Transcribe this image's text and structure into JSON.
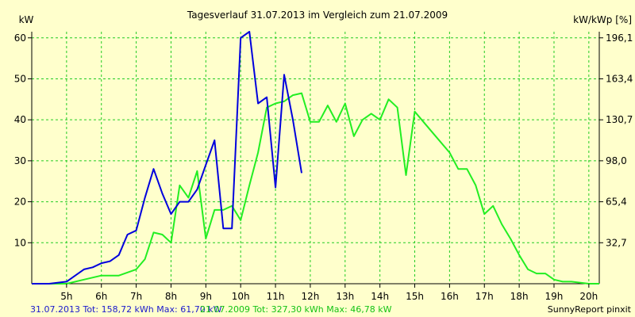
{
  "chart_data": {
    "type": "line",
    "title": "Tagesverlauf 31.07.2013 im Vergleich zum 21.07.2009",
    "ylabel_left": "kW",
    "ylabel_right": "kW/kWp [%]",
    "x_ticks": [
      "5h",
      "6h",
      "7h",
      "8h",
      "9h",
      "10h",
      "11h",
      "12h",
      "13h",
      "14h",
      "15h",
      "16h",
      "17h",
      "18h",
      "19h",
      "20h"
    ],
    "x_tick_values": [
      5,
      6,
      7,
      8,
      9,
      10,
      11,
      12,
      13,
      14,
      15,
      16,
      17,
      18,
      19,
      20
    ],
    "xlim": [
      4.0,
      20.3
    ],
    "y_ticks": [
      10,
      20,
      30,
      40,
      50,
      60
    ],
    "ylim": [
      0,
      61.5
    ],
    "y2_ticks": [
      "32,7",
      "65,4",
      "98,0",
      "130,7",
      "163,4",
      "196,1"
    ],
    "grid": true,
    "colors": {
      "series1": "#0000dd",
      "series2": "#22ee22",
      "grid": "#22cc22",
      "background": "#ffffcc"
    },
    "series": [
      {
        "name": "31.07.2013",
        "points": [
          [
            4.0,
            0
          ],
          [
            4.5,
            0
          ],
          [
            5.0,
            0.5
          ],
          [
            5.25,
            2
          ],
          [
            5.5,
            3.5
          ],
          [
            5.75,
            4
          ],
          [
            6.0,
            5
          ],
          [
            6.25,
            5.5
          ],
          [
            6.5,
            7
          ],
          [
            6.75,
            12
          ],
          [
            7.0,
            13
          ],
          [
            7.25,
            21
          ],
          [
            7.5,
            28
          ],
          [
            7.75,
            22
          ],
          [
            8.0,
            17
          ],
          [
            8.25,
            20
          ],
          [
            8.5,
            20
          ],
          [
            8.75,
            23
          ],
          [
            9.0,
            29
          ],
          [
            9.25,
            35
          ],
          [
            9.5,
            13.5
          ],
          [
            9.75,
            13.5
          ],
          [
            10.0,
            60
          ],
          [
            10.25,
            61.5
          ],
          [
            10.5,
            44
          ],
          [
            10.75,
            45.5
          ],
          [
            11.0,
            23.5
          ],
          [
            11.25,
            51
          ],
          [
            11.5,
            40
          ],
          [
            11.75,
            27
          ]
        ]
      },
      {
        "name": "21.07.2009",
        "points": [
          [
            4.0,
            0
          ],
          [
            5.0,
            0
          ],
          [
            5.5,
            1
          ],
          [
            6.0,
            2
          ],
          [
            6.5,
            2
          ],
          [
            7.0,
            3.5
          ],
          [
            7.25,
            6
          ],
          [
            7.5,
            12.5
          ],
          [
            7.75,
            12
          ],
          [
            8.0,
            10
          ],
          [
            8.25,
            24
          ],
          [
            8.5,
            21
          ],
          [
            8.75,
            27.5
          ],
          [
            9.0,
            11
          ],
          [
            9.25,
            18
          ],
          [
            9.5,
            18
          ],
          [
            9.75,
            19
          ],
          [
            10.0,
            15.5
          ],
          [
            10.25,
            24
          ],
          [
            10.5,
            32
          ],
          [
            10.75,
            43
          ],
          [
            11.0,
            44
          ],
          [
            11.25,
            44.5
          ],
          [
            11.5,
            46
          ],
          [
            11.75,
            46.5
          ],
          [
            12.0,
            39.5
          ],
          [
            12.25,
            39.5
          ],
          [
            12.5,
            43.5
          ],
          [
            12.75,
            39.5
          ],
          [
            13.0,
            44
          ],
          [
            13.25,
            36
          ],
          [
            13.5,
            40
          ],
          [
            13.75,
            41.5
          ],
          [
            14.0,
            40
          ],
          [
            14.25,
            45
          ],
          [
            14.5,
            43
          ],
          [
            14.75,
            26.5
          ],
          [
            15.0,
            42
          ],
          [
            15.5,
            37
          ],
          [
            16.0,
            32
          ],
          [
            16.25,
            28
          ],
          [
            16.5,
            28
          ],
          [
            16.75,
            24
          ],
          [
            17.0,
            17
          ],
          [
            17.25,
            19
          ],
          [
            17.5,
            14.5
          ],
          [
            17.75,
            11
          ],
          [
            18.0,
            7
          ],
          [
            18.25,
            3.5
          ],
          [
            18.5,
            2.5
          ],
          [
            18.75,
            2.5
          ],
          [
            19.0,
            1
          ],
          [
            19.25,
            0.5
          ],
          [
            19.5,
            0.5
          ],
          [
            20.0,
            0
          ],
          [
            20.3,
            0
          ]
        ]
      }
    ]
  },
  "footer": {
    "series1_label": "31.07.2013 Tot: 158,72 kWh Max: 61,70 kW",
    "series2_label": "21.07.2009 Tot: 327,30 kWh Max: 46,78 kW",
    "credit": "SunnyReport pinxit"
  }
}
